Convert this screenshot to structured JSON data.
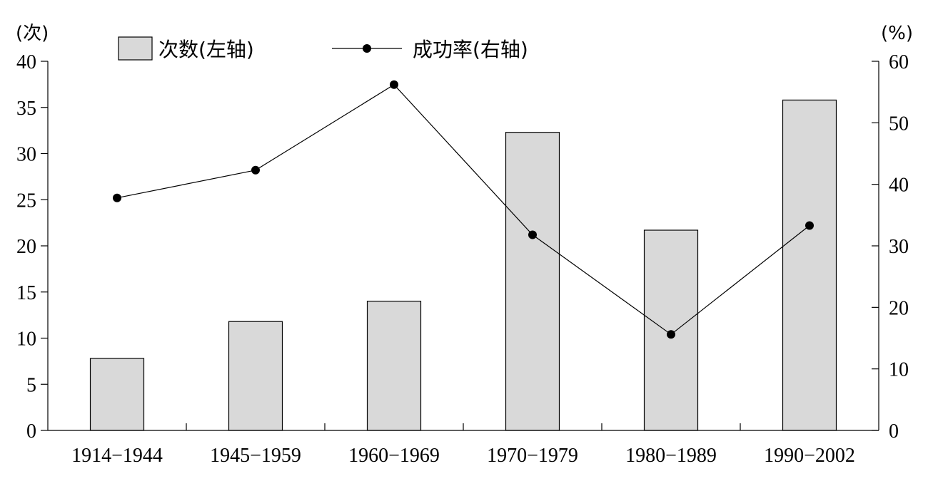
{
  "chart_data": {
    "type": "bar",
    "categories": [
      "1914−1944",
      "1945−1959",
      "1960−1969",
      "1970−1979",
      "1980−1989",
      "1990−2002"
    ],
    "series": [
      {
        "name": "次数(左轴)",
        "type": "bar",
        "axis": "left",
        "values": [
          7.8,
          11.8,
          14.0,
          32.3,
          21.7,
          35.8
        ],
        "color": "#d9d9d9"
      },
      {
        "name": "成功率(右轴)",
        "type": "line",
        "axis": "right",
        "values": [
          37.8,
          42.3,
          56.2,
          31.8,
          15.6,
          33.3
        ],
        "color": "#000000"
      }
    ],
    "y_left": {
      "unit": "(次)",
      "ylim": [
        0,
        40
      ],
      "ticks": [
        "0",
        "5",
        "10",
        "15",
        "20",
        "25",
        "30",
        "35",
        "40"
      ]
    },
    "y_right": {
      "unit": "(%)",
      "ylim": [
        0,
        60
      ],
      "ticks": [
        "0",
        "10",
        "20",
        "30",
        "40",
        "50",
        "60"
      ]
    },
    "grid": false,
    "legend_position": "top"
  }
}
